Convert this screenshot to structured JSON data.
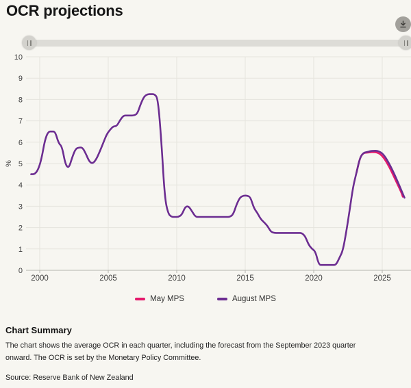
{
  "header": {
    "title": "OCR projections"
  },
  "controls": {
    "download_icon": "arrow-down-to-line",
    "slider_handle_icon": "grip-bars-vertical"
  },
  "chart_data": {
    "type": "line",
    "title": "OCR projections",
    "xlabel": "",
    "ylabel": "%",
    "ylim": [
      0,
      10
    ],
    "yticks": [
      0,
      1,
      2,
      3,
      4,
      5,
      6,
      7,
      8,
      9,
      10
    ],
    "xticks": [
      2000,
      2005,
      2010,
      2015,
      2020,
      2025
    ],
    "xlim": [
      1999.1,
      2027.1
    ],
    "grid": true,
    "legend_position": "bottom",
    "x_unit": "year, quarterly data points",
    "series": [
      {
        "name": "May MPS",
        "color": "#e5196c",
        "x": [
          2023.125,
          2023.375,
          2023.625,
          2023.875,
          2024.125,
          2024.375,
          2024.625,
          2024.875,
          2025.125,
          2025.375,
          2025.625,
          2025.875,
          2026.125,
          2026.375,
          2026.5
        ],
        "values": [
          4.58,
          5.28,
          5.5,
          5.51,
          5.53,
          5.54,
          5.52,
          5.44,
          5.26,
          5.0,
          4.7,
          4.36,
          4.02,
          3.68,
          3.45
        ]
      },
      {
        "name": "August MPS",
        "color": "#6c2d91",
        "x": [
          1999.375,
          1999.625,
          1999.875,
          2000.125,
          2000.375,
          2000.625,
          2000.875,
          2001.125,
          2001.375,
          2001.625,
          2001.875,
          2002.125,
          2002.375,
          2002.625,
          2002.875,
          2003.125,
          2003.375,
          2003.625,
          2003.875,
          2004.125,
          2004.375,
          2004.625,
          2004.875,
          2005.125,
          2005.375,
          2005.625,
          2005.875,
          2006.125,
          2006.375,
          2006.625,
          2006.875,
          2007.125,
          2007.375,
          2007.625,
          2007.875,
          2008.125,
          2008.375,
          2008.625,
          2008.875,
          2009.125,
          2009.375,
          2009.625,
          2009.875,
          2010.125,
          2010.375,
          2010.625,
          2010.875,
          2011.125,
          2011.375,
          2011.625,
          2011.875,
          2012.125,
          2012.375,
          2012.625,
          2012.875,
          2013.125,
          2013.375,
          2013.625,
          2013.875,
          2014.125,
          2014.375,
          2014.625,
          2014.875,
          2015.125,
          2015.375,
          2015.625,
          2015.875,
          2016.125,
          2016.375,
          2016.625,
          2016.875,
          2017.125,
          2017.375,
          2017.625,
          2017.875,
          2018.125,
          2018.375,
          2018.625,
          2018.875,
          2019.125,
          2019.375,
          2019.625,
          2019.875,
          2020.125,
          2020.375,
          2020.625,
          2020.875,
          2021.125,
          2021.375,
          2021.625,
          2021.875,
          2022.125,
          2022.375,
          2022.625,
          2022.875,
          2023.125,
          2023.375,
          2023.625,
          2023.875,
          2024.125,
          2024.375,
          2024.625,
          2024.875,
          2025.125,
          2025.375,
          2025.625,
          2025.875,
          2026.125,
          2026.375,
          2026.625
        ],
        "values": [
          4.5,
          4.5,
          4.7,
          5.2,
          6.1,
          6.5,
          6.5,
          6.5,
          5.95,
          5.8,
          4.95,
          4.78,
          5.3,
          5.7,
          5.75,
          5.75,
          5.45,
          5.08,
          5.0,
          5.2,
          5.55,
          5.95,
          6.35,
          6.58,
          6.75,
          6.75,
          7.05,
          7.25,
          7.25,
          7.25,
          7.25,
          7.33,
          7.8,
          8.15,
          8.25,
          8.25,
          8.25,
          8.05,
          6.1,
          3.4,
          2.65,
          2.5,
          2.5,
          2.5,
          2.6,
          2.98,
          3.0,
          2.75,
          2.5,
          2.5,
          2.5,
          2.5,
          2.5,
          2.5,
          2.5,
          2.5,
          2.5,
          2.5,
          2.5,
          2.62,
          3.1,
          3.42,
          3.5,
          3.5,
          3.44,
          2.92,
          2.7,
          2.4,
          2.25,
          2.08,
          1.8,
          1.75,
          1.75,
          1.75,
          1.75,
          1.75,
          1.75,
          1.75,
          1.75,
          1.75,
          1.6,
          1.2,
          1.0,
          0.88,
          0.25,
          0.25,
          0.25,
          0.25,
          0.25,
          0.25,
          0.58,
          0.92,
          1.8,
          2.83,
          3.93,
          4.58,
          5.28,
          5.5,
          5.54,
          5.58,
          5.6,
          5.6,
          5.54,
          5.4,
          5.15,
          4.85,
          4.52,
          4.16,
          3.78,
          3.4
        ]
      }
    ]
  },
  "summary": {
    "heading": "Chart Summary",
    "lines": [
      "The chart shows the average OCR in each quarter, including the forecast from the September 2023 quarter",
      "onward. The OCR is set by the Monetary Policy Committee."
    ],
    "source": "Source: Reserve Bank of New Zealand"
  },
  "colors": {
    "background": "#f7f6f1",
    "grid": "#e5e4dd",
    "axis_line": "#b6b5af",
    "tick_text": "#3f3f3f",
    "title_text": "#161616"
  }
}
